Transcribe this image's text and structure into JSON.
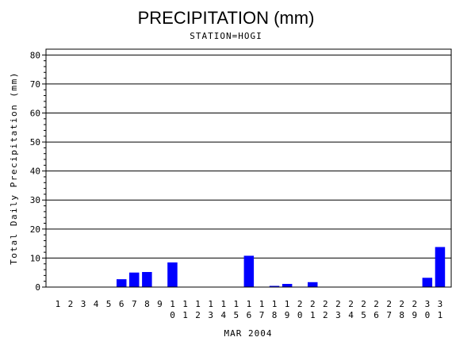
{
  "chart_data": {
    "type": "bar",
    "title": "PRECIPITATION (mm)",
    "subtitle": "STATION=HOGI",
    "ylabel": "Total Daily Precipitation (mm)",
    "xlabel": "MAR 2004",
    "ylim": [
      0,
      82
    ],
    "yticks": [
      0,
      10,
      20,
      30,
      40,
      50,
      60,
      70,
      80
    ],
    "grid": true,
    "bar_color": "#0000ff",
    "categories": [
      "1",
      "2",
      "3",
      "4",
      "5",
      "6",
      "7",
      "8",
      "9",
      "10",
      "11",
      "12",
      "13",
      "14",
      "15",
      "16",
      "17",
      "18",
      "19",
      "20",
      "21",
      "22",
      "23",
      "24",
      "25",
      "26",
      "27",
      "28",
      "29",
      "30",
      "31"
    ],
    "values": [
      0,
      0,
      0,
      0,
      0,
      2.7,
      5.0,
      5.2,
      0,
      8.5,
      0,
      0,
      0,
      0,
      0,
      10.8,
      0,
      0.4,
      1.1,
      0,
      1.7,
      0,
      0,
      0,
      0,
      0,
      0,
      0,
      0,
      3.2,
      13.8
    ]
  }
}
